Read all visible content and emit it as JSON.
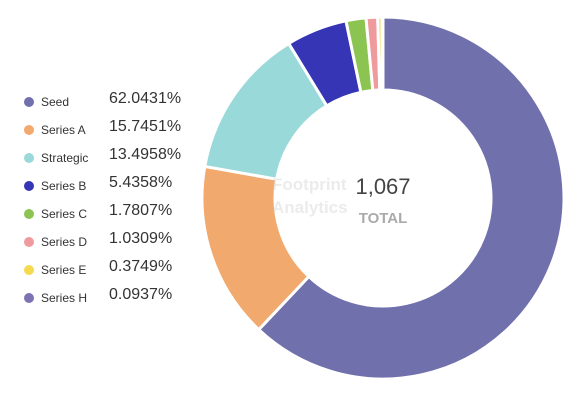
{
  "watermark": {
    "line1": "Footprint",
    "line2": "Analytics"
  },
  "chart_data": {
    "type": "pie",
    "variant": "donut",
    "center_value": "1,067",
    "center_label": "TOTAL",
    "legend_position": "left",
    "categories": [
      "Seed",
      "Series A",
      "Strategic",
      "Series B",
      "Series C",
      "Series D",
      "Series E",
      "Series H"
    ],
    "percent_labels": [
      "62.0431%",
      "15.7451%",
      "13.4958%",
      "5.4358%",
      "1.7807%",
      "1.0309%",
      "0.3749%",
      "0.0937%"
    ],
    "values": [
      62.0431,
      15.7451,
      13.4958,
      5.4358,
      1.7807,
      1.0309,
      0.3749,
      0.0937
    ],
    "colors": [
      "#7070ad",
      "#f2a96e",
      "#99d9d9",
      "#3535b5",
      "#8cc451",
      "#ef9a9c",
      "#f5d94e",
      "#7d73b3"
    ]
  }
}
